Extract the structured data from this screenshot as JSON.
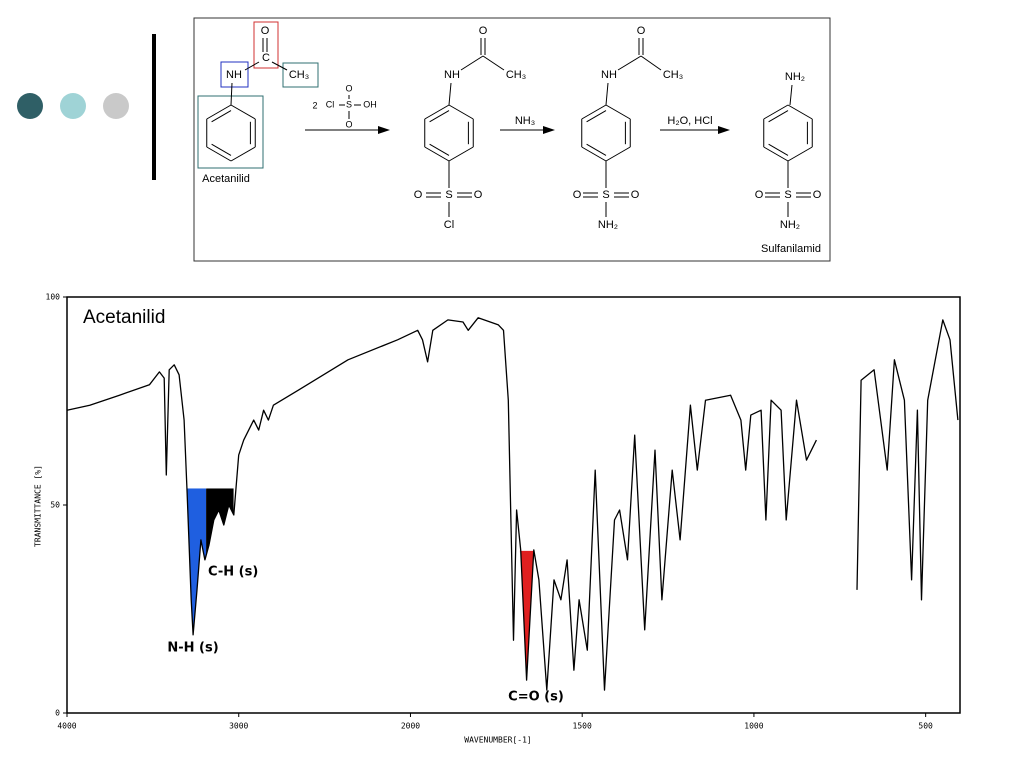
{
  "scheme": {
    "reactant_name": "Acetanilid",
    "product_name": "Sulfanilamid",
    "reagents": [
      "2",
      "NH₃",
      "H₂O, HCl"
    ],
    "atoms": [
      "O",
      "C",
      "NH",
      "CH₃",
      "Cl",
      "S",
      "OH",
      "O",
      "O",
      "O",
      "NH",
      "CH₃",
      "O",
      "S",
      "O",
      "Cl",
      "O",
      "NH",
      "CH₃",
      "O",
      "S",
      "O",
      "NH₂",
      "NH₂",
      "O",
      "S",
      "O",
      "NH₂"
    ]
  },
  "chart_data": {
    "type": "line",
    "title": "Acetanilid",
    "x_label": "WAVENUMBER[-1]",
    "y_label": "TRANSMITTANCE [%]",
    "x": [
      4000,
      3867,
      3694,
      3520,
      3462,
      3434,
      3422,
      3405,
      3376,
      3347,
      3318,
      3301,
      3277,
      3266,
      3243,
      3220,
      3197,
      3173,
      3145,
      3116,
      3087,
      3058,
      3029,
      3000,
      2971,
      2913,
      2884,
      2855,
      2827,
      2798,
      2653,
      2364,
      2075,
      1979,
      1965,
      1950,
      1935,
      1891,
      1847,
      1832,
      1803,
      1744,
      1729,
      1715,
      1700,
      1691,
      1679,
      1662,
      1641,
      1626,
      1603,
      1582,
      1562,
      1544,
      1524,
      1509,
      1485,
      1462,
      1435,
      1406,
      1391,
      1368,
      1347,
      1318,
      1288,
      1268,
      1238,
      1215,
      1185,
      1165,
      1141,
      1068,
      1038,
      1024,
      1009,
      979,
      965,
      950,
      921,
      906,
      876,
      847,
      818,
      760,
      700,
      688,
      650,
      612,
      591,
      562,
      541,
      524,
      512,
      494,
      450,
      429,
      406
    ],
    "values": [
      72.8,
      74,
      76.4,
      78.9,
      82,
      80.5,
      57.2,
      82.5,
      83.7,
      81.3,
      70.4,
      53.6,
      27.2,
      18.8,
      29.6,
      41.6,
      36.8,
      40.4,
      46.4,
      48.8,
      45.2,
      50,
      47.6,
      62,
      65.6,
      70.4,
      68,
      72.8,
      70.4,
      74,
      77.6,
      84.9,
      89.7,
      92,
      89.7,
      84.4,
      92,
      94.5,
      94,
      92,
      95,
      93.3,
      92,
      75.2,
      17.5,
      48.8,
      39.2,
      7.9,
      39.2,
      32,
      5.5,
      32,
      27.2,
      36.8,
      10.3,
      27.2,
      15.1,
      58.4,
      5.5,
      46.4,
      48.8,
      36.8,
      66.8,
      20,
      63.2,
      27.2,
      58.4,
      41.6,
      74,
      58.4,
      75.2,
      76.4,
      70.4,
      58.4,
      71.6,
      72.8,
      46.4,
      75.2,
      72.8,
      46.4,
      75.2,
      60.8,
      65.6,
      null,
      29.6,
      80,
      82.5,
      58.4,
      84.9,
      75.2,
      32,
      72.8,
      27.2,
      75.2,
      94.5,
      89.7,
      70.4
    ],
    "color": "#000000",
    "xlim": [
      4000,
      400
    ],
    "xticks": [
      4000,
      3000,
      2000,
      1500,
      1000,
      500
    ],
    "ylim": [
      0,
      100
    ],
    "yticks": [
      0,
      50,
      100
    ],
    "highlights": [
      {
        "label": "N-H (s)",
        "color": "#1f5fe0",
        "from": 3300,
        "to": 3190,
        "level": 54
      },
      {
        "label": "C-H (s)",
        "color": "#000000",
        "from": 3190,
        "to": 3030,
        "level": 54
      },
      {
        "label": "C=O (s)",
        "color": "#e02020",
        "from": 1682,
        "to": 1640,
        "level": 39
      }
    ]
  }
}
